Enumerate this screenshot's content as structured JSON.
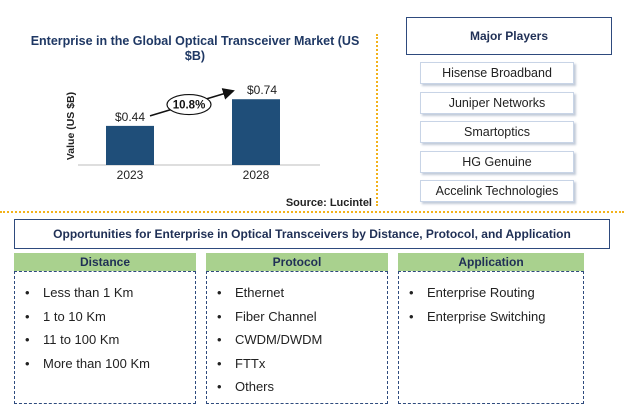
{
  "chart_data": {
    "type": "bar",
    "title": "Enterprise in the Global Optical Transceiver Market (US $B)",
    "ylabel": "Value (US $B)",
    "categories": [
      "2023",
      "2028"
    ],
    "values": [
      0.44,
      0.74
    ],
    "value_labels": [
      "$0.44",
      "$0.74"
    ],
    "growth_label": "10.8%",
    "ylim": [
      0,
      0.9
    ],
    "bar_color": "#1f4e79"
  },
  "source": "Source: Lucintel",
  "major_players": {
    "title": "Major Players",
    "items": [
      "Hisense Broadband",
      "Juniper Networks",
      "Smartoptics",
      "HG Genuine",
      "Accelink Technologies"
    ]
  },
  "opportunities": {
    "title": "Opportunities for Enterprise in Optical Transceivers by Distance, Protocol, and Application",
    "categories": [
      {
        "header": "Distance",
        "items": [
          "Less than 1 Km",
          "1 to 10 Km",
          "11 to 100 Km",
          "More than 100 Km"
        ]
      },
      {
        "header": "Protocol",
        "items": [
          "Ethernet",
          "Fiber Channel",
          "CWDM/DWDM",
          "FTTx",
          "Others"
        ]
      },
      {
        "header": "Application",
        "items": [
          "Enterprise Routing",
          "Enterprise Switching"
        ]
      }
    ]
  },
  "colors": {
    "separator": "#f2b21b",
    "header_green": "#a9d18e",
    "border_navy": "#2e4a7d"
  }
}
